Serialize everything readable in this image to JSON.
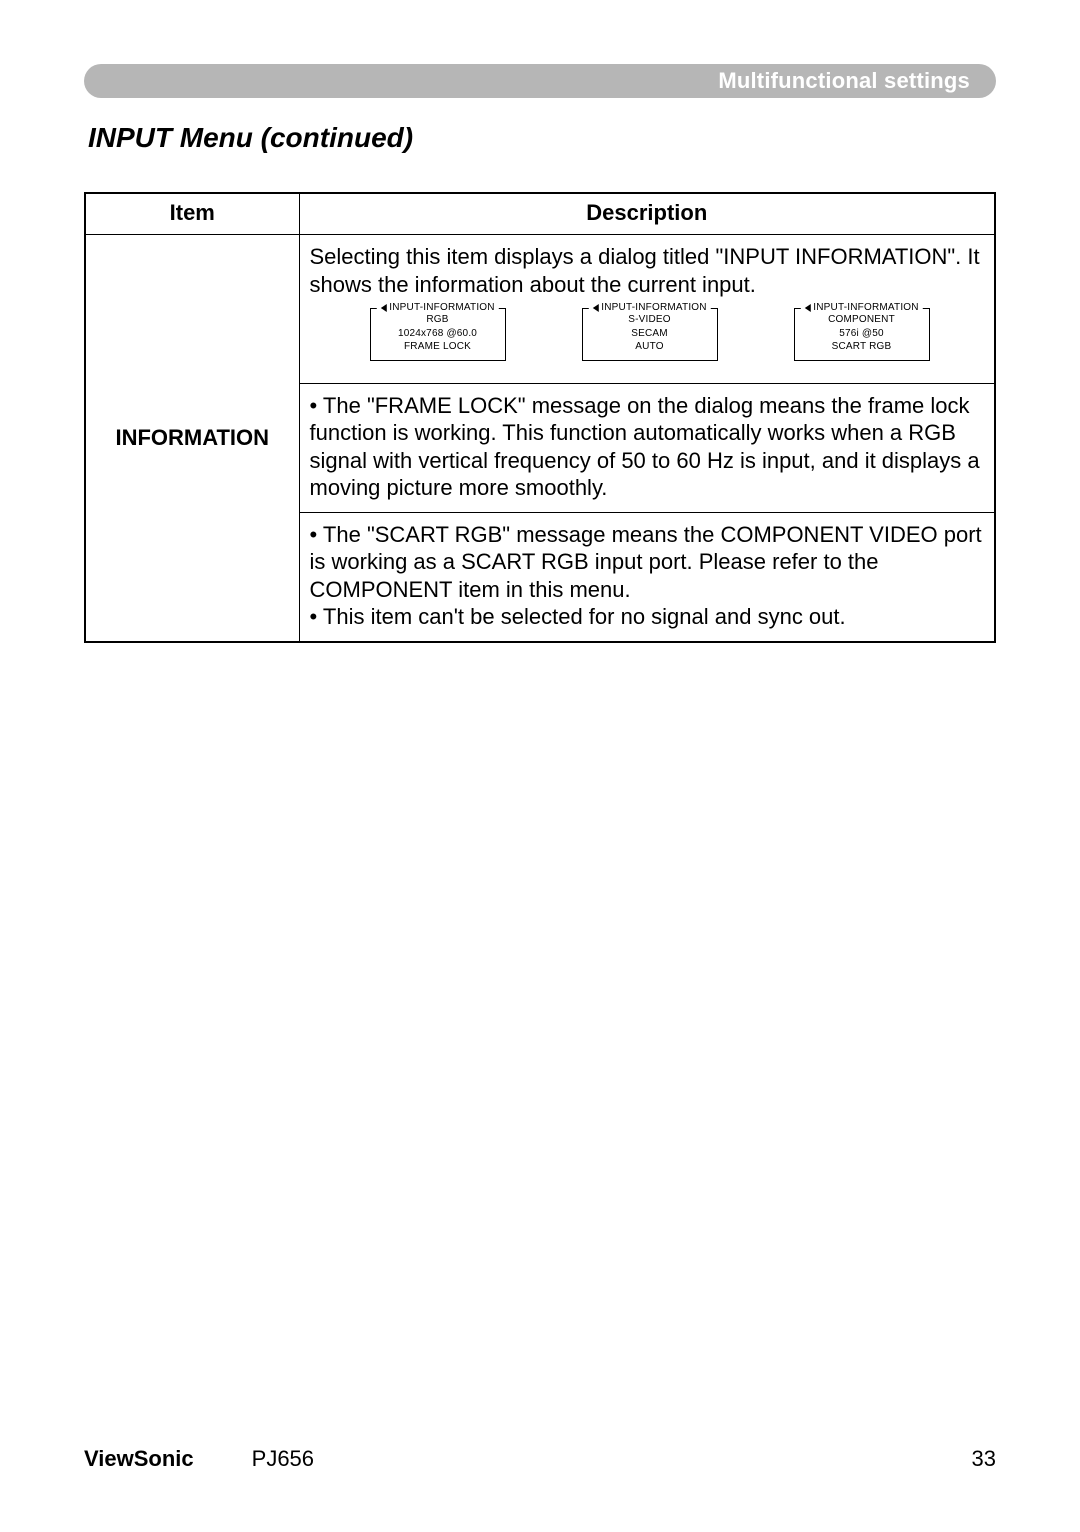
{
  "header": {
    "section": "Multifunctional settings"
  },
  "section_title": "INPUT Menu (continued)",
  "table": {
    "headers": {
      "item": "Item",
      "description": "Description"
    },
    "row": {
      "item": "INFORMATION",
      "intro": "Selecting this item displays a dialog titled \"INPUT INFORMATION\". It shows the information about the current input.",
      "dialogs": [
        {
          "title": "INPUT-INFORMATION",
          "lines": [
            "RGB",
            "1024x768 @60.0",
            "FRAME LOCK"
          ]
        },
        {
          "title": "INPUT-INFORMATION",
          "lines": [
            "S-VIDEO",
            "SECAM",
            "AUTO"
          ]
        },
        {
          "title": "INPUT-INFORMATION",
          "lines": [
            "COMPONENT",
            "576i @50",
            "SCART RGB"
          ]
        }
      ],
      "p2": "• The \"FRAME LOCK\" message on the dialog means the frame lock function is working. This function automatically works when a RGB signal with vertical frequency of 50 to 60 Hz is input, and it displays a moving picture more smoothly.",
      "p3a": "• The \"SCART RGB\" message means the COMPONENT VIDEO port is working as a SCART RGB input port. Please refer to the COMPONENT item in this menu.",
      "p3b": "• This item can't be selected for no signal and sync out."
    }
  },
  "footer": {
    "brand": "ViewSonic",
    "model": "PJ656",
    "page": "33"
  }
}
